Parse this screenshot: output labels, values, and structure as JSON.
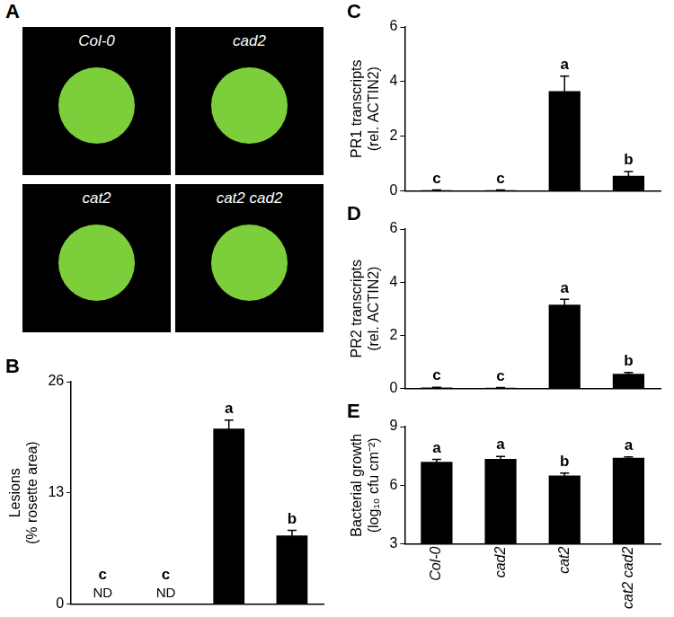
{
  "panel_a": {
    "panel": "A",
    "images": [
      "Col-0",
      "cad2",
      "cat2",
      "cat2 cad2"
    ]
  },
  "chart_data": [
    {
      "type": "bar",
      "panel": "B",
      "y_label": [
        "Lesions",
        "(% rosette area)"
      ],
      "categories": [
        "Col-0",
        "cad2",
        "cat2",
        "cat2 cad2"
      ],
      "values": [
        0,
        0,
        20.5,
        8.0
      ],
      "errors": [
        0,
        0,
        1.0,
        0.6
      ],
      "letters": [
        "c",
        "c",
        "a",
        "b"
      ],
      "notes": [
        "ND",
        "ND",
        null,
        null
      ],
      "color": "#000000",
      "ylim": [
        0,
        26
      ],
      "yticks": [
        0,
        13,
        26
      ],
      "grid": false,
      "tick_labels": "y"
    },
    {
      "type": "bar",
      "panel": "C",
      "y_label": [
        "PR1 transcripts",
        "(rel. ACTIN2)"
      ],
      "categories": [
        "Col-0",
        "cad2",
        "cat2",
        "cat2 cad2"
      ],
      "values": [
        0.02,
        0.02,
        3.65,
        0.55
      ],
      "errors": [
        0.01,
        0.01,
        0.55,
        0.15
      ],
      "letters": [
        "c",
        "c",
        "a",
        "b"
      ],
      "color": "#000000",
      "ylim": [
        0,
        6
      ],
      "yticks": [
        0,
        2,
        4,
        6
      ],
      "grid": false,
      "tick_labels": "y"
    },
    {
      "type": "bar",
      "panel": "D",
      "y_label": [
        "PR2 transcripts",
        "(rel. ACTIN2)"
      ],
      "categories": [
        "Col-0",
        "cad2",
        "cat2",
        "cat2 cad2"
      ],
      "values": [
        0.03,
        0.02,
        3.15,
        0.55
      ],
      "errors": [
        0.01,
        0.01,
        0.2,
        0.05
      ],
      "letters": [
        "c",
        "c",
        "a",
        "b"
      ],
      "color": "#000000",
      "ylim": [
        0,
        6
      ],
      "yticks": [
        0,
        2,
        4,
        6
      ],
      "grid": false,
      "tick_labels": "y"
    },
    {
      "type": "bar",
      "panel": "E",
      "y_label": [
        "Bacterial growth",
        "(log₁₀ cfu cm⁻²)"
      ],
      "categories": [
        "Col-0",
        "cad2",
        "cat2",
        "cat2 cad2"
      ],
      "values": [
        7.2,
        7.35,
        6.5,
        7.4
      ],
      "errors": [
        0.12,
        0.12,
        0.12,
        0.05
      ],
      "letters": [
        "a",
        "a",
        "b",
        "a"
      ],
      "color": "#000000",
      "ylim": [
        3,
        9
      ],
      "yticks": [
        3,
        6,
        9
      ],
      "grid": false
    }
  ]
}
